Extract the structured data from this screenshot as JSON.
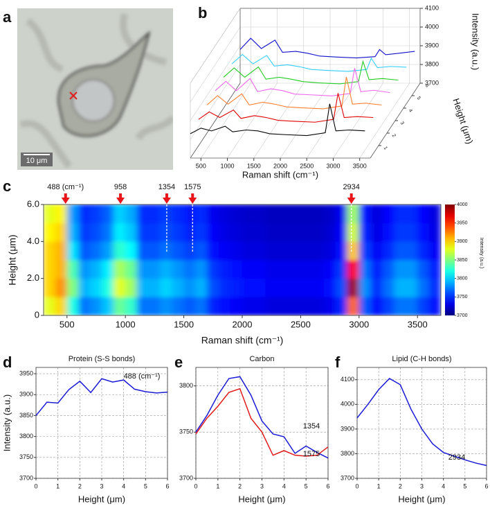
{
  "chart_data": [
    {
      "type": "image",
      "panel_label": "a",
      "scale_bar_label": "10 μm"
    },
    {
      "type": "waterfall",
      "panel_label": "b",
      "x": [
        300,
        500,
        700,
        958,
        1100,
        1354,
        1575,
        1800,
        2100,
        2500,
        2850,
        2934,
        3050,
        3300,
        3600
      ],
      "series": [
        {
          "height": 0,
          "color": "#000000",
          "values": [
            3830,
            3860,
            3845,
            3870,
            3840,
            3850,
            3845,
            3830,
            3825,
            3820,
            3835,
            3990,
            3845,
            3850,
            3845
          ]
        },
        {
          "height": 1,
          "color": "#e00000",
          "values": [
            3840,
            3880,
            3850,
            3890,
            3845,
            3860,
            3850,
            3835,
            3830,
            3825,
            3840,
            3980,
            3850,
            3855,
            3850
          ]
        },
        {
          "height": 2,
          "color": "#ff8030",
          "values": [
            3850,
            3900,
            3855,
            3910,
            3850,
            3865,
            3855,
            3840,
            3835,
            3830,
            3845,
            4000,
            3855,
            3860,
            3850
          ]
        },
        {
          "height": 3,
          "color": "#ee66ee",
          "values": [
            3860,
            3910,
            3860,
            3925,
            3855,
            3870,
            3860,
            3842,
            3838,
            3832,
            3845,
            3980,
            3855,
            3862,
            3850
          ]
        },
        {
          "height": 4,
          "color": "#22cc22",
          "values": [
            3865,
            3915,
            3865,
            3920,
            3855,
            3865,
            3855,
            3842,
            3835,
            3830,
            3842,
            3950,
            3852,
            3858,
            3850
          ]
        },
        {
          "height": 5,
          "color": "#33ccff",
          "values": [
            3870,
            3920,
            3870,
            3915,
            3858,
            3865,
            3855,
            3840,
            3835,
            3830,
            3840,
            3900,
            3850,
            3856,
            3852
          ]
        },
        {
          "height": 6,
          "color": "#1010cc",
          "values": [
            3880,
            3940,
            3885,
            3930,
            3865,
            3870,
            3860,
            3845,
            3840,
            3835,
            3842,
            3880,
            3852,
            3860,
            3870
          ]
        }
      ],
      "xlim": [
        300,
        3700
      ],
      "xticks": [
        500,
        1000,
        1500,
        2000,
        2500,
        3000,
        3500
      ],
      "zlim": [
        3700,
        4100
      ],
      "zticks": [
        3700,
        3800,
        3900,
        4000,
        4100
      ],
      "hlim": [
        0,
        6
      ],
      "hticks": [
        1,
        2,
        3,
        4,
        5,
        6
      ],
      "xlabel": "Raman shift (cm⁻¹)",
      "zlabel": "Intensity (a.u.)",
      "hlabel": "Height (μm)"
    },
    {
      "type": "heatmap",
      "panel_label": "c",
      "x_edges": [
        300,
        400,
        500,
        600,
        700,
        800,
        900,
        1000,
        1100,
        1200,
        1300,
        1400,
        1500,
        1600,
        1700,
        1800,
        1900,
        2000,
        2100,
        2200,
        2300,
        2400,
        2500,
        2600,
        2700,
        2800,
        2900,
        3000,
        3100,
        3200,
        3300,
        3400,
        3500,
        3600,
        3700
      ],
      "y_edges": [
        0,
        1,
        2,
        3,
        4,
        5,
        6
      ],
      "values": [
        [
          3880,
          3900,
          3820,
          3772,
          3780,
          3796,
          3844,
          3828,
          3772,
          3772,
          3780,
          3772,
          3764,
          3772,
          3748,
          3740,
          3736,
          3732,
          3732,
          3728,
          3728,
          3728,
          3728,
          3728,
          3732,
          3748,
          3932,
          3764,
          3740,
          3756,
          3772,
          3772,
          3756,
          3740
        ],
        [
          3900,
          3920,
          3850,
          3790,
          3800,
          3820,
          3880,
          3860,
          3790,
          3790,
          3800,
          3790,
          3780,
          3790,
          3760,
          3750,
          3745,
          3740,
          3740,
          3735,
          3735,
          3735,
          3735,
          3735,
          3740,
          3760,
          3990,
          3780,
          3750,
          3770,
          3790,
          3790,
          3770,
          3750
        ],
        [
          3900,
          3910,
          3835,
          3781,
          3790,
          3808,
          3862,
          3844,
          3781,
          3781,
          3790,
          3781,
          3772,
          3781,
          3754,
          3745,
          3741,
          3736,
          3736,
          3732,
          3732,
          3732,
          3732,
          3732,
          3736,
          3754,
          3961,
          3772,
          3745,
          3763,
          3781,
          3781,
          3763,
          3745
        ],
        [
          3900,
          3910,
          3805,
          3763,
          3770,
          3784,
          3826,
          3812,
          3763,
          3763,
          3770,
          3763,
          3756,
          3763,
          3742,
          3735,
          3732,
          3728,
          3728,
          3725,
          3725,
          3725,
          3725,
          3725,
          3728,
          3742,
          3903,
          3756,
          3735,
          3749,
          3763,
          3763,
          3749,
          3735
        ],
        [
          3890,
          3900,
          3790,
          3754,
          3760,
          3772,
          3808,
          3796,
          3754,
          3754,
          3760,
          3754,
          3748,
          3754,
          3736,
          3730,
          3727,
          3724,
          3724,
          3721,
          3721,
          3721,
          3721,
          3721,
          3724,
          3736,
          3874,
          3748,
          3730,
          3742,
          3754,
          3754,
          3742,
          3730
        ],
        [
          3880,
          3890,
          3783,
          3750,
          3755,
          3766,
          3799,
          3788,
          3750,
          3750,
          3755,
          3750,
          3744,
          3750,
          3733,
          3728,
          3725,
          3722,
          3722,
          3719,
          3719,
          3719,
          3719,
          3719,
          3722,
          3733,
          3860,
          3744,
          3728,
          3739,
          3750,
          3750,
          3739,
          3728
        ]
      ],
      "xlim": [
        300,
        3700
      ],
      "xticks": [
        500,
        1000,
        1500,
        2000,
        2500,
        3000,
        3500
      ],
      "ylim": [
        0,
        6
      ],
      "yticks": [
        0,
        {
          "value": 2,
          "label": "2.0"
        },
        {
          "value": 4,
          "label": "4.0"
        },
        {
          "value": 6,
          "label": "6.0"
        }
      ],
      "xlabel": "Raman shift (cm⁻¹)",
      "ylabel": "Height (μm)",
      "colorbar": {
        "lim": [
          3700,
          4000
        ],
        "ticks": [
          3700,
          3750,
          3800,
          3850,
          3900,
          3950,
          4000
        ],
        "label": "Intensity (a.u.)"
      },
      "annotations": [
        {
          "value": 488,
          "label": "488 (cm⁻¹)",
          "dashed": false
        },
        {
          "value": 958,
          "label": "958",
          "dashed": false
        },
        {
          "value": 1354,
          "label": "1354",
          "dashed": true
        },
        {
          "value": 1575,
          "label": "1575",
          "dashed": true
        },
        {
          "value": 2934,
          "label": "2934",
          "dashed": true
        }
      ]
    },
    {
      "type": "line",
      "panel_label": "d",
      "title": "Protein (S-S bonds)",
      "x": [
        0,
        0.5,
        1,
        1.5,
        2,
        2.5,
        3,
        3.5,
        4,
        4.5,
        5,
        5.5,
        6
      ],
      "series": [
        {
          "name": "488 (cm⁻¹)",
          "color": "#1a1ad6",
          "values": [
            3850,
            3882,
            3880,
            3912,
            3932,
            3905,
            3938,
            3930,
            3935,
            3913,
            3907,
            3904,
            3906
          ]
        }
      ],
      "xlim": [
        0,
        6
      ],
      "xticks": [
        0,
        1,
        2,
        3,
        4,
        5,
        6
      ],
      "ylim": [
        3700,
        3965
      ],
      "yticks": [
        3700,
        3750,
        3800,
        3850,
        3900,
        3950
      ],
      "xlabel": "Height (μm)",
      "ylabel": "Intensity (a.u.)",
      "grid": true
    },
    {
      "type": "line",
      "panel_label": "e",
      "title": "Carbon",
      "x": [
        0,
        0.5,
        1,
        1.5,
        2,
        2.5,
        3,
        3.5,
        4,
        4.5,
        5,
        5.5,
        6
      ],
      "series": [
        {
          "name": "1354",
          "color": "#1a1ad6",
          "values": [
            3750,
            3768,
            3790,
            3808,
            3810,
            3790,
            3762,
            3748,
            3745,
            3727,
            3735,
            3728,
            3722
          ]
        },
        {
          "name": "1575",
          "color": "#e01a1a",
          "values": [
            3748,
            3765,
            3778,
            3793,
            3797,
            3765,
            3750,
            3725,
            3730,
            3725,
            3724,
            3725,
            3734
          ]
        }
      ],
      "xlim": [
        0,
        6
      ],
      "xticks": [
        0,
        1,
        2,
        3,
        4,
        5,
        6
      ],
      "ylim": [
        3700,
        3820
      ],
      "yticks": [
        3700,
        3750,
        3800
      ],
      "xlabel": "Height (μm)",
      "grid": true
    },
    {
      "type": "line",
      "panel_label": "f",
      "title": "Lipid (C-H bonds)",
      "x": [
        0,
        0.5,
        1,
        1.5,
        2,
        2.5,
        3,
        3.5,
        4,
        4.5,
        5,
        5.5,
        6
      ],
      "series": [
        {
          "name": "2934",
          "color": "#1a1ad6",
          "values": [
            3945,
            4000,
            4060,
            4105,
            4080,
            3980,
            3900,
            3840,
            3805,
            3790,
            3775,
            3762,
            3752
          ]
        }
      ],
      "xlim": [
        0,
        6
      ],
      "xticks": [
        0,
        1,
        2,
        3,
        4,
        5,
        6
      ],
      "ylim": [
        3700,
        4150
      ],
      "yticks": [
        3700,
        3800,
        3900,
        4000,
        4100
      ],
      "xlabel": "Height (μm)",
      "grid": true
    }
  ]
}
